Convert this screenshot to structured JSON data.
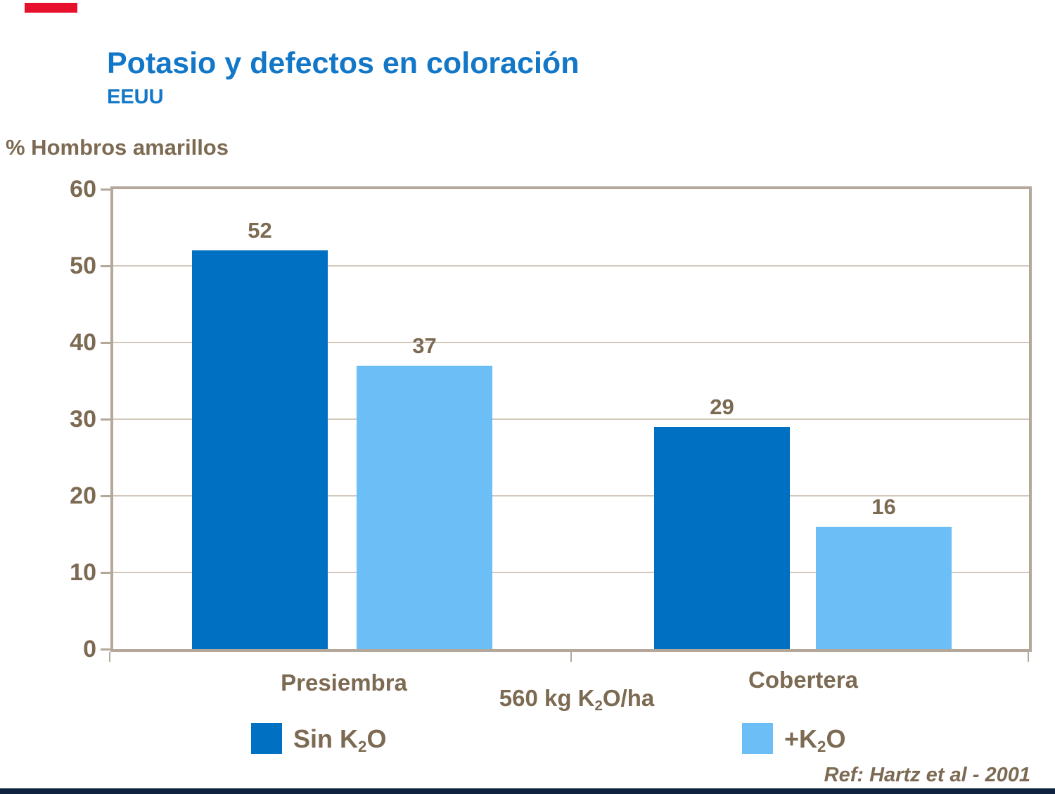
{
  "header": {
    "title": "Potasio y defectos en coloración",
    "subtitle": "EEUU",
    "title_color": "#1377c8"
  },
  "axis_title": "% Hombros amarillos",
  "chart_data": {
    "type": "bar",
    "categories": [
      "Presiembra",
      "Cobertera"
    ],
    "series": [
      {
        "name": "Sin K2O",
        "label_parts": {
          "pre": "Sin K",
          "sub": "2",
          "post": "O"
        },
        "color": "#0070c2",
        "values": [
          52,
          29
        ]
      },
      {
        "name": "+K2O",
        "label_parts": {
          "pre": "+K",
          "sub": "2",
          "post": "O"
        },
        "color": "#6cbef7",
        "values": [
          37,
          16
        ]
      }
    ],
    "title": "Potasio y defectos en coloración",
    "xlabel": "",
    "ylabel": "% Hombros amarillos",
    "ylim": [
      0,
      60
    ],
    "yticks": [
      0,
      10,
      20,
      30,
      40,
      50,
      60
    ],
    "grid": true,
    "legend_position": "bottom",
    "value_labels": [
      52,
      37,
      29,
      16
    ],
    "axis_note_parts": {
      "pre": "560 kg K",
      "sub": "2",
      "post": "O/ha"
    }
  },
  "decor": {
    "red_bar_color": "#e8112d",
    "bottom_bar_color": "#0f2240",
    "frame_color": "#b3a89a",
    "grid_color": "#d2c8bc",
    "text_color": "#7c6a52"
  },
  "footer": {
    "ref_text": "Ref: Hartz et al - 2001"
  }
}
